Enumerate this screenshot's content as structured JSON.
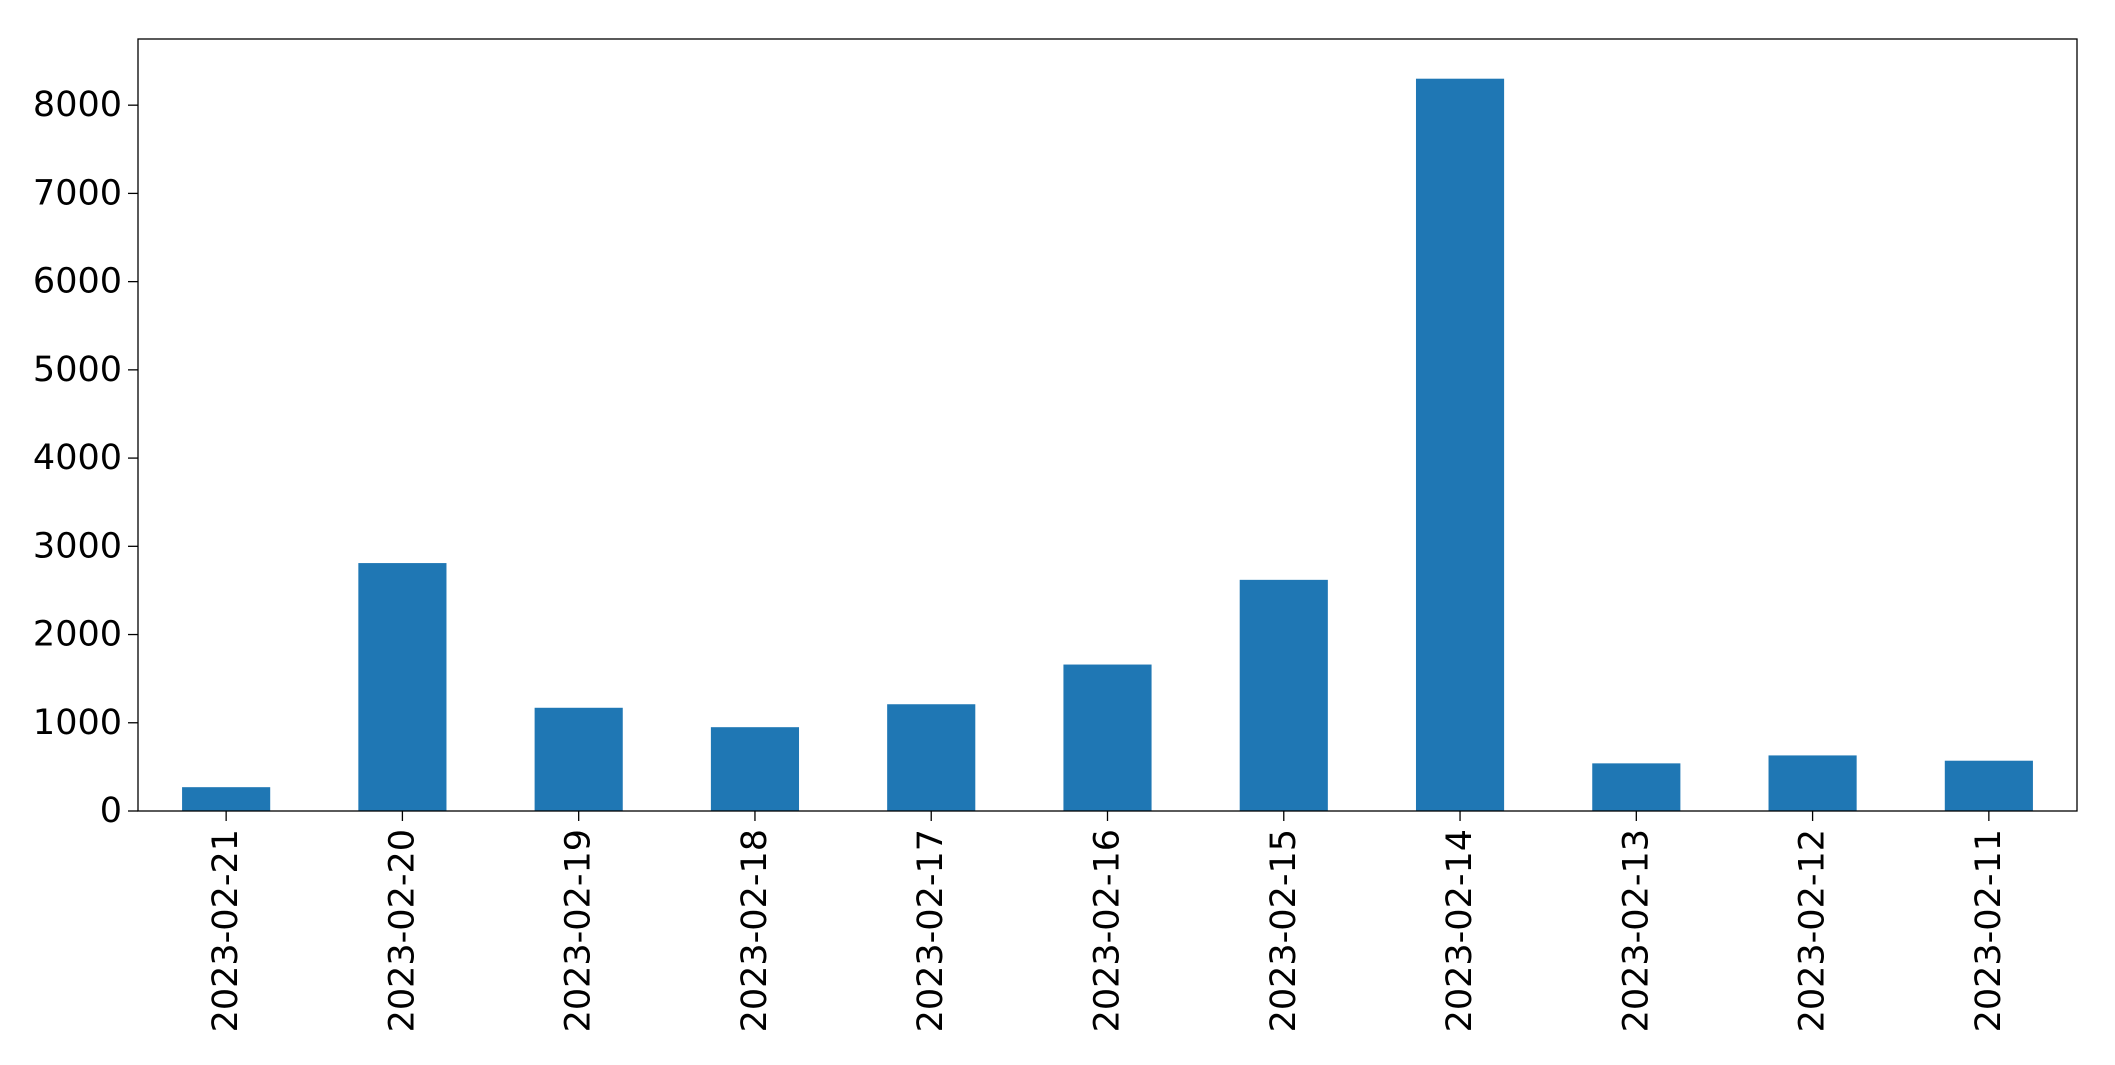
{
  "chart_data": {
    "type": "bar",
    "title": "",
    "xlabel": "",
    "ylabel": "",
    "categories": [
      "2023-02-21",
      "2023-02-20",
      "2023-02-19",
      "2023-02-18",
      "2023-02-17",
      "2023-02-16",
      "2023-02-15",
      "2023-02-14",
      "2023-02-13",
      "2023-02-12",
      "2023-02-11"
    ],
    "values": [
      270,
      2810,
      1170,
      950,
      1210,
      1660,
      2620,
      8300,
      540,
      630,
      570
    ],
    "ylim": [
      0,
      8750
    ],
    "yticks": [
      0,
      1000,
      2000,
      3000,
      4000,
      5000,
      6000,
      7000,
      8000
    ],
    "bar_color": "#1f77b4",
    "grid": false,
    "legend": "none"
  }
}
